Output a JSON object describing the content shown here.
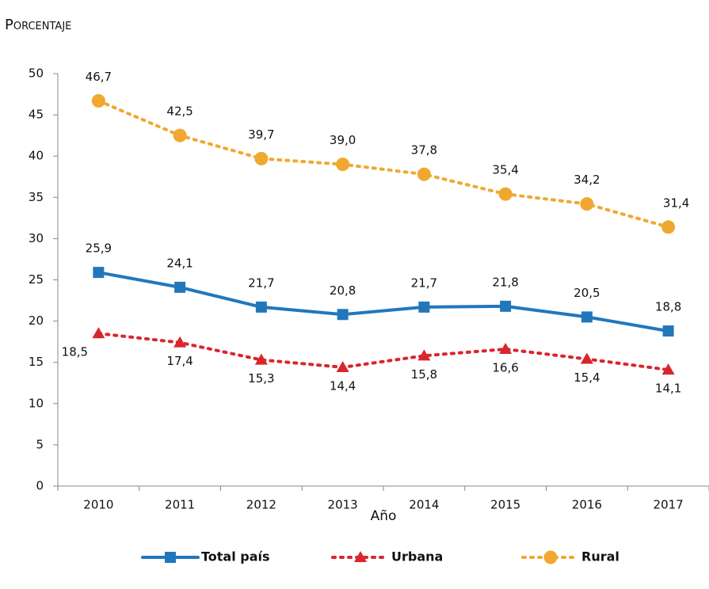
{
  "chart_data": {
    "type": "line",
    "ylabel": "Porcentaje",
    "xlabel": "Año",
    "categories": [
      "2010",
      "2011",
      "2012",
      "2013",
      "2014",
      "2015",
      "2016",
      "2017"
    ],
    "ylim": [
      0,
      50
    ],
    "yticks": [
      0,
      5,
      10,
      15,
      20,
      25,
      30,
      35,
      40,
      45,
      50
    ],
    "series": [
      {
        "name": "Total país",
        "color": "#2277bb",
        "marker": "square",
        "dash": "solid",
        "values": [
          25.9,
          24.1,
          21.7,
          20.8,
          21.7,
          21.8,
          20.5,
          18.8
        ],
        "value_labels": [
          "25,9",
          "24,1",
          "21,7",
          "20,8",
          "21,7",
          "21,8",
          "20,5",
          "18,8"
        ]
      },
      {
        "name": "Urbana",
        "color": "#d9262b",
        "marker": "triangle",
        "dash": "dotted",
        "values": [
          18.5,
          17.4,
          15.3,
          14.4,
          15.8,
          16.6,
          15.4,
          14.1
        ],
        "value_labels": [
          "18,5",
          "17,4",
          "15,3",
          "14,4",
          "15,8",
          "16,6",
          "15,4",
          "14,1"
        ]
      },
      {
        "name": "Rural",
        "color": "#f0a830",
        "marker": "circle",
        "dash": "dotted",
        "values": [
          46.7,
          42.5,
          39.7,
          39.0,
          37.8,
          35.4,
          34.2,
          31.4
        ],
        "value_labels": [
          "46,7",
          "42,5",
          "39,7",
          "39,0",
          "37,8",
          "35,4",
          "34,2",
          "31,4"
        ]
      }
    ]
  }
}
